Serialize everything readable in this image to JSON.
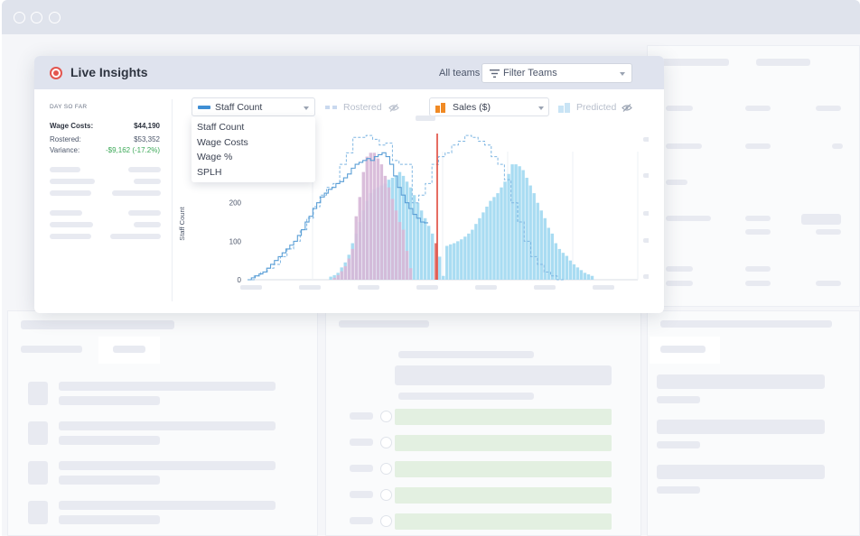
{
  "browser": {
    "window_dots": 3
  },
  "card": {
    "title": "Live Insights",
    "status_icon": "record-icon",
    "header": {
      "team_label": "All teams",
      "filter": {
        "placeholder": "Filter Teams",
        "icon": "filter-icon"
      }
    }
  },
  "summary": {
    "period": "DAY SO FAR",
    "rows": [
      {
        "label": "Wage Costs:",
        "value": "$44,190",
        "emphasis": true
      },
      {
        "label": "Rostered:",
        "value": "$53,352",
        "emphasis": false
      },
      {
        "label": "Variance:",
        "value": "-$9,162 (-17.2%)",
        "emphasis": false,
        "color": "#3aa856"
      }
    ]
  },
  "controls": {
    "metric_select": {
      "value": "Staff Count",
      "color": "#3f8ed4"
    },
    "rostered_toggle": {
      "label": "Rostered",
      "icon": "eye-off-icon",
      "color": "#c9d9ef"
    },
    "sales_select": {
      "value": "Sales ($)",
      "color": "#f08a24"
    },
    "predicted_toggle": {
      "label": "Predicted",
      "icon": "eye-off-icon",
      "color": "#c9e4f5"
    }
  },
  "metric_options": [
    "Staff Count",
    "Wage Costs",
    "Wage %",
    "SPLH"
  ],
  "colors": {
    "staff_line": "#5b9fd6",
    "rostered_line": "#7fb6e2",
    "sales_bars": "#a9dcf2",
    "wage_bars": "#d7b9d8",
    "now_line": "#e0473b"
  },
  "chart_data": {
    "type": "bar",
    "ylabel": "Staff Count",
    "yticks": [
      "0",
      "100",
      "200"
    ],
    "ylim": [
      0,
      380
    ],
    "sales_series": [
      0,
      0,
      0,
      0,
      0,
      0,
      0,
      0,
      0,
      0,
      0,
      0,
      0,
      0,
      0,
      0,
      0,
      0,
      0,
      0,
      0,
      0,
      8,
      12,
      18,
      32,
      45,
      65,
      95,
      120,
      150,
      180,
      205,
      225,
      235,
      240,
      245,
      250,
      260,
      265,
      270,
      280,
      270,
      255,
      240,
      220,
      200,
      180,
      160,
      140,
      120,
      95,
      60,
      10,
      88,
      92,
      95,
      100,
      105,
      112,
      120,
      130,
      145,
      160,
      175,
      190,
      205,
      215,
      225,
      240,
      255,
      275,
      300,
      300,
      295,
      285,
      265,
      245,
      225,
      200,
      180,
      160,
      135,
      120,
      95,
      80,
      70,
      62,
      50,
      40,
      32,
      25,
      18,
      14,
      10,
      0,
      0,
      0,
      0,
      0,
      0,
      0,
      0,
      0,
      0
    ],
    "wage_series": [
      0,
      0,
      0,
      0,
      0,
      0,
      0,
      0,
      0,
      0,
      0,
      0,
      0,
      0,
      0,
      0,
      0,
      0,
      0,
      0,
      0,
      0,
      0,
      5,
      12,
      22,
      35,
      55,
      80,
      165,
      215,
      280,
      320,
      330,
      330,
      315,
      300,
      270,
      240,
      210,
      180,
      150,
      130,
      75,
      30,
      0,
      0,
      0,
      0,
      0,
      0,
      0,
      0,
      0,
      0,
      0,
      0,
      0,
      0,
      0,
      0,
      0,
      0,
      0,
      0,
      0,
      0,
      0,
      0,
      0,
      0,
      0,
      0,
      0,
      0,
      0,
      0,
      0,
      0,
      0,
      0,
      0,
      0,
      0,
      0,
      0,
      0,
      0,
      0,
      0,
      0,
      0,
      0,
      0,
      0,
      0,
      0,
      0,
      0,
      0,
      0,
      0,
      0,
      0,
      0
    ],
    "staff_steps": [
      0,
      5,
      10,
      15,
      20,
      30,
      40,
      50,
      60,
      70,
      80,
      90,
      100,
      115,
      130,
      150,
      165,
      185,
      200,
      215,
      225,
      235,
      240,
      250,
      255,
      265,
      275,
      290,
      300,
      305,
      310,
      315,
      310,
      320,
      325,
      330,
      320,
      300,
      270,
      240,
      220,
      200,
      185,
      170,
      160,
      150,
      148
    ],
    "rostered_steps": [
      0,
      10,
      20,
      30,
      40,
      60,
      80,
      100,
      130,
      160,
      190,
      220,
      240,
      250,
      300,
      330,
      370,
      370,
      375,
      365,
      350,
      355,
      310,
      300,
      300,
      200,
      220,
      250,
      300,
      320,
      330,
      350,
      360,
      375,
      370,
      360,
      350,
      320,
      300,
      260,
      200,
      150,
      100,
      60,
      40,
      20,
      10,
      0
    ],
    "now_index": 52
  }
}
